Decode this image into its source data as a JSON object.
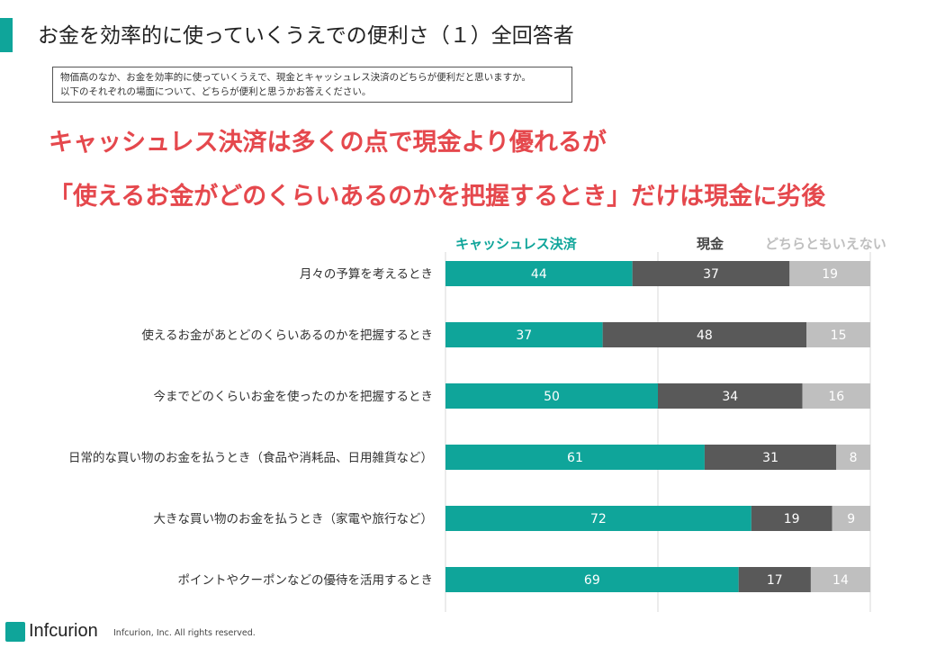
{
  "page": {
    "title": "お金を効率的に使っていくうえでの便利さ（１）全回答者",
    "question_line1": "物価高のなか、お金を効率的に使っていくうえで、現金とキャッシュレス決済のどちらが便利だと思いますか。",
    "question_line2": "以下のそれぞれの場面について、どちらが便利と思うかお答えください。",
    "headline_line1": "キャッシュレス決済は多くの点で現金より優れるが",
    "headline_line2": "「使えるお金がどのくらいあるのかを把握するとき」だけは現金に劣後"
  },
  "footer": {
    "logo_text": "Infcurion",
    "copyright": "Infcurion, Inc.  All rights reserved."
  },
  "colors": {
    "accent": "#0fa59a",
    "cashless": "#0fa59a",
    "cash": "#595959",
    "neither": "#bfbfbf",
    "headline": "#e5484d"
  },
  "chart_data": {
    "type": "bar",
    "orientation": "horizontal",
    "stacked": true,
    "xlim": [
      0,
      100
    ],
    "grid": true,
    "legend_position": "top",
    "categories": [
      "月々の予算を考えるとき",
      "使えるお金があとどのくらいあるのかを把握するとき",
      "今までどのくらいお金を使ったのかを把握するとき",
      "日常的な買い物のお金を払うとき（食品や消耗品、日用雑貨など）",
      "大きな買い物のお金を払うとき（家電や旅行など）",
      "ポイントやクーポンなどの優待を活用するとき"
    ],
    "series": [
      {
        "name": "キャッシュレス決済",
        "color": "#0fa59a",
        "values": [
          44,
          37,
          50,
          61,
          72,
          69
        ]
      },
      {
        "name": "現金",
        "color": "#595959",
        "values": [
          37,
          48,
          34,
          31,
          19,
          17
        ]
      },
      {
        "name": "どちらともいえない",
        "color": "#bfbfbf",
        "values": [
          19,
          15,
          16,
          8,
          9,
          14
        ]
      }
    ]
  }
}
